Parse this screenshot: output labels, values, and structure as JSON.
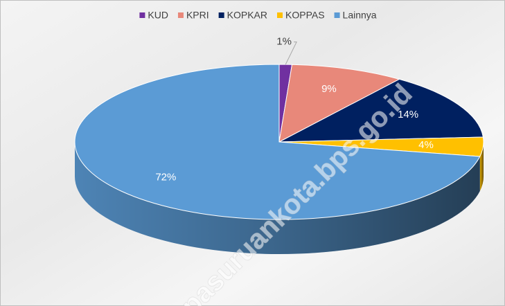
{
  "chart_data": {
    "type": "pie",
    "three_d": true,
    "categories": [
      "KUD",
      "KPRI",
      "KOPKAR",
      "KOPPAS",
      "Lainnya"
    ],
    "values": [
      1,
      9,
      14,
      4,
      72
    ],
    "value_labels": [
      "1%",
      "9%",
      "14%",
      "4%",
      "72%"
    ],
    "colors": [
      "#7030a0",
      "#e8887a",
      "#002060",
      "#ffc000",
      "#5b9bd5"
    ],
    "legend": "top",
    "watermark": "pasuruankota.bps.go.id"
  }
}
